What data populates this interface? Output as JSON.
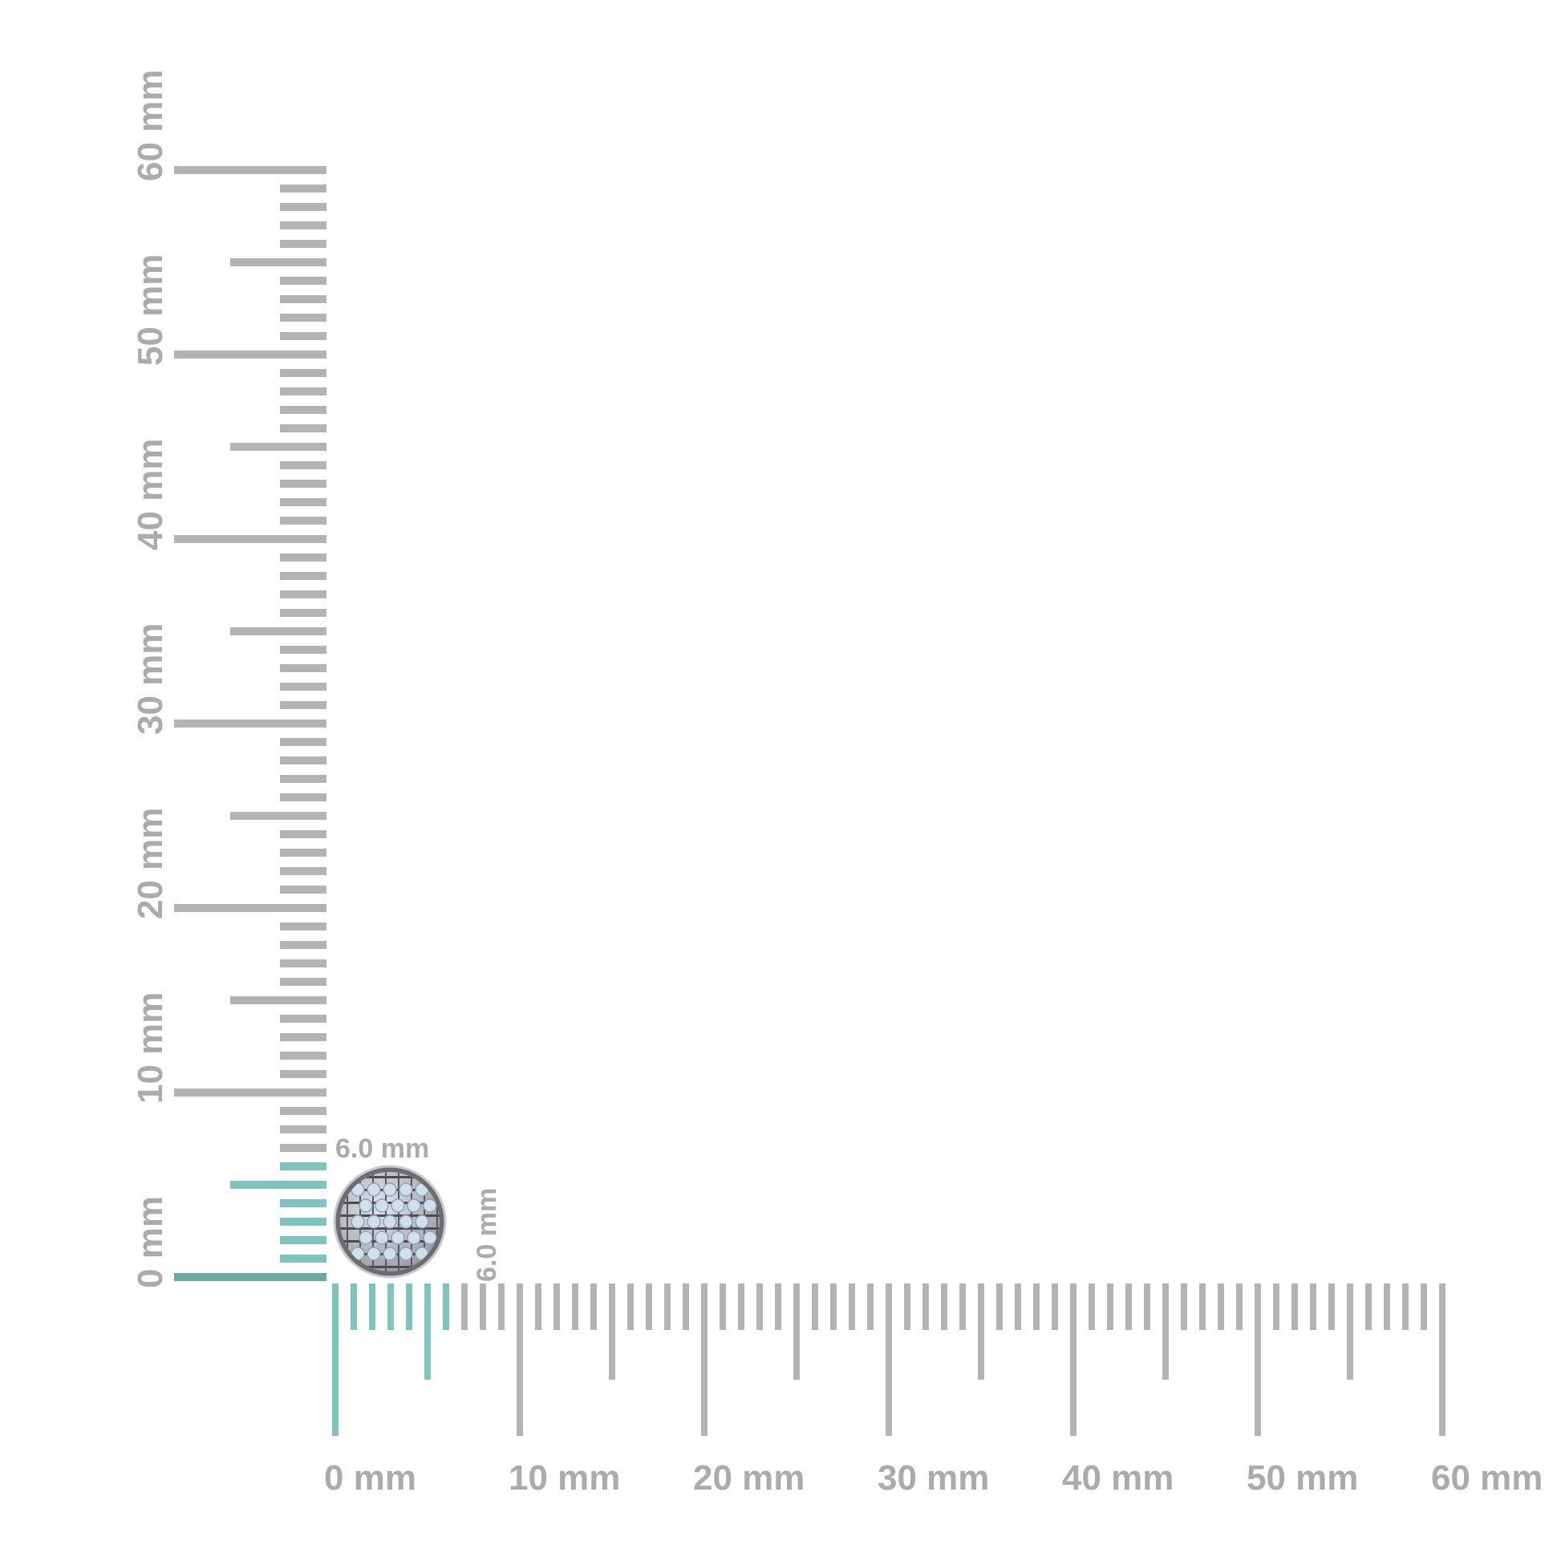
{
  "rulers": {
    "horizontal": {
      "min": 0,
      "max": 60,
      "unit": "mm",
      "labels": [
        "0 mm",
        "10 mm",
        "20 mm",
        "30 mm",
        "40 mm",
        "50 mm",
        "60 mm"
      ]
    },
    "vertical": {
      "min": 0,
      "max": 60,
      "unit": "mm",
      "labels": [
        "0 mm",
        "10 mm",
        "20 mm",
        "30 mm",
        "40 mm",
        "50 mm",
        "60 mm"
      ]
    },
    "highlight_mm": 6,
    "colors": {
      "tick": "#b3b3b3",
      "highlight": "#7cc4bd",
      "highlight_dark": "#6aaaa3",
      "label": "#ababab"
    }
  },
  "item": {
    "name": "round pave diamond stud",
    "width_label": "6.0 mm",
    "height_label": "6.0 mm"
  }
}
